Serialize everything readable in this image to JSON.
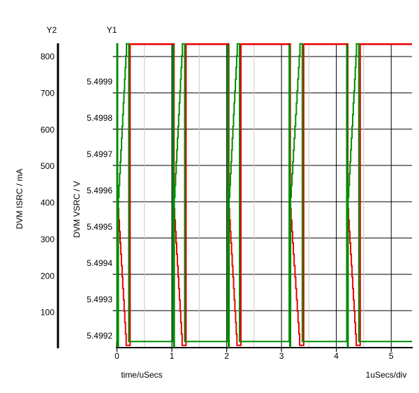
{
  "window": {
    "background": "#ffffff"
  },
  "labels": {
    "y2_header": "Y2",
    "y1_header": "Y1",
    "y2_axis_title": "DVM ISRC / mA",
    "y1_axis_title": "DVM VSRC / V",
    "x_axis_title": "time/uSecs",
    "per_div_label": "1uSecs/div"
  },
  "chart_data": {
    "type": "line",
    "title": "",
    "xlabel": "time/uSecs",
    "x_range": [
      0,
      5.38
    ],
    "x_major_ticks": [
      0,
      1,
      2,
      3,
      4,
      5
    ],
    "x_major_tick_labels": [
      "0",
      "1",
      "2",
      "3",
      "4",
      "5"
    ],
    "x_minor_ticks": [
      0.5,
      1.5,
      2.5,
      3.5,
      4.5
    ],
    "x_div_label": "1uSecs/div",
    "y1_axis": {
      "header": "Y1",
      "title": "DVM VSRC / V",
      "unit": "V",
      "tick_labels": [
        "5.4999",
        "5.4998",
        "5.4997",
        "5.4996",
        "5.4995",
        "5.4994",
        "5.4993",
        "5.4992"
      ],
      "tick_values": [
        5.4999,
        5.4998,
        5.4997,
        5.4996,
        5.4995,
        5.4994,
        5.4993,
        5.4992
      ],
      "gridline_values": [
        5.5,
        5.4999,
        5.4998,
        5.4997,
        5.4996,
        5.4995,
        5.4994,
        5.4993
      ],
      "range": [
        5.4992,
        5.500035
      ]
    },
    "y2_axis": {
      "header": "Y2",
      "title": "DVM ISRC / mA",
      "unit": "mA",
      "tick_labels": [
        "800",
        "700",
        "600",
        "500",
        "400",
        "300",
        "200",
        "100"
      ],
      "tick_values": [
        800,
        700,
        600,
        500,
        400,
        300,
        200,
        100
      ],
      "range": [
        0,
        835
      ]
    },
    "grid": {
      "h_major_color": "#000000",
      "v_major_color": "#000000",
      "v_minor_color": "#c9c9c9",
      "axis_color": "#000000"
    },
    "series": [
      {
        "name": "DVM VSRC",
        "axis": "y1",
        "color": "#008c00",
        "shape": "spike-ramp",
        "levels": {
          "top": 5.500035,
          "bottom": 5.499215,
          "spike_low": 5.4992,
          "ramp_start": 5.49958
        },
        "ramp_steps": 14,
        "clusters": [
          {
            "t0": 0.0,
            "w": 0.185
          },
          {
            "t0": 1.02,
            "w": 0.185
          },
          {
            "t0": 2.02,
            "w": 0.185
          },
          {
            "t0": 3.14,
            "w": 0.21
          },
          {
            "t0": 4.19,
            "w": 0.19
          }
        ]
      },
      {
        "name": "DVM ISRC",
        "axis": "y2",
        "color": "#e80000",
        "shape": "pulse-rampdown",
        "levels": {
          "top": 834,
          "mid": 415,
          "bottom": 10
        },
        "ramp_steps": 13,
        "clusters": [
          {
            "t0": 0.0,
            "w": 0.185
          },
          {
            "t0": 1.02,
            "w": 0.185
          },
          {
            "t0": 2.02,
            "w": 0.185
          },
          {
            "t0": 3.14,
            "w": 0.21
          },
          {
            "t0": 4.19,
            "w": 0.19
          }
        ]
      }
    ]
  }
}
